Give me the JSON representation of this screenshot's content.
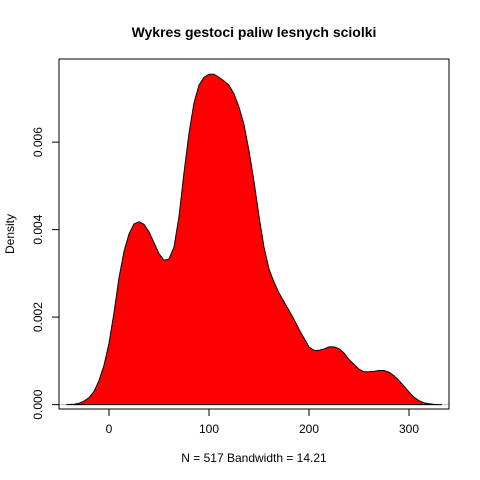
{
  "chart_data": {
    "type": "area",
    "title": "Wykres gestoci paliw lesnych sciolki",
    "xlabel": "N = 517   Bandwidth = 14.21",
    "ylabel": "Density",
    "xlim": [
      -50,
      340
    ],
    "ylim": [
      -0.0001,
      0.0079
    ],
    "x_ticks": [
      0,
      100,
      200,
      300
    ],
    "x_tick_labels": [
      "0",
      "100",
      "200",
      "300"
    ],
    "y_ticks": [
      0.0,
      0.002,
      0.004,
      0.006
    ],
    "y_tick_labels": [
      "0.000",
      "0.002",
      "0.004",
      "0.006"
    ],
    "fill_color": "#ff0000",
    "line_color": "#000000",
    "baseline_color": "#bebebe",
    "grid": false,
    "legend": "none",
    "series": [
      {
        "x": [
          -42.6,
          -35,
          -30,
          -25,
          -20,
          -15,
          -10,
          -5,
          0,
          5,
          10,
          15,
          20,
          25,
          30,
          35,
          40,
          45,
          50,
          55,
          60,
          65,
          70,
          75,
          80,
          85,
          90,
          95,
          100,
          105,
          110,
          115,
          120,
          125,
          130,
          135,
          140,
          145,
          150,
          155,
          160,
          165,
          170,
          175,
          180,
          185,
          190,
          195,
          200,
          205,
          210,
          215,
          220,
          225,
          230,
          235,
          240,
          245,
          250,
          255,
          260,
          265,
          270,
          275,
          280,
          285,
          290,
          295,
          300,
          305,
          310,
          315,
          320,
          325,
          330,
          333
        ],
        "y": [
          0.0,
          1e-05,
          3e-05,
          8e-05,
          0.00016,
          0.0003,
          0.00055,
          0.0009,
          0.0014,
          0.0021,
          0.0029,
          0.0035,
          0.0039,
          0.00413,
          0.00418,
          0.00412,
          0.00395,
          0.0037,
          0.00345,
          0.0033,
          0.00333,
          0.0036,
          0.0043,
          0.0053,
          0.0062,
          0.0069,
          0.0073,
          0.00748,
          0.00755,
          0.00755,
          0.00748,
          0.0074,
          0.0073,
          0.0071,
          0.0068,
          0.0064,
          0.0058,
          0.0051,
          0.0043,
          0.0036,
          0.0031,
          0.0028,
          0.00255,
          0.00235,
          0.00215,
          0.00195,
          0.00172,
          0.00152,
          0.00132,
          0.00124,
          0.00124,
          0.00127,
          0.00132,
          0.00132,
          0.00128,
          0.00118,
          0.00103,
          0.00092,
          0.00081,
          0.00075,
          0.00075,
          0.00076,
          0.00078,
          0.00078,
          0.00074,
          0.00066,
          0.00055,
          0.00042,
          0.00029,
          0.00017,
          9e-05,
          4e-05,
          2e-05,
          5e-06,
          1e-06,
          0.0
        ]
      }
    ]
  }
}
